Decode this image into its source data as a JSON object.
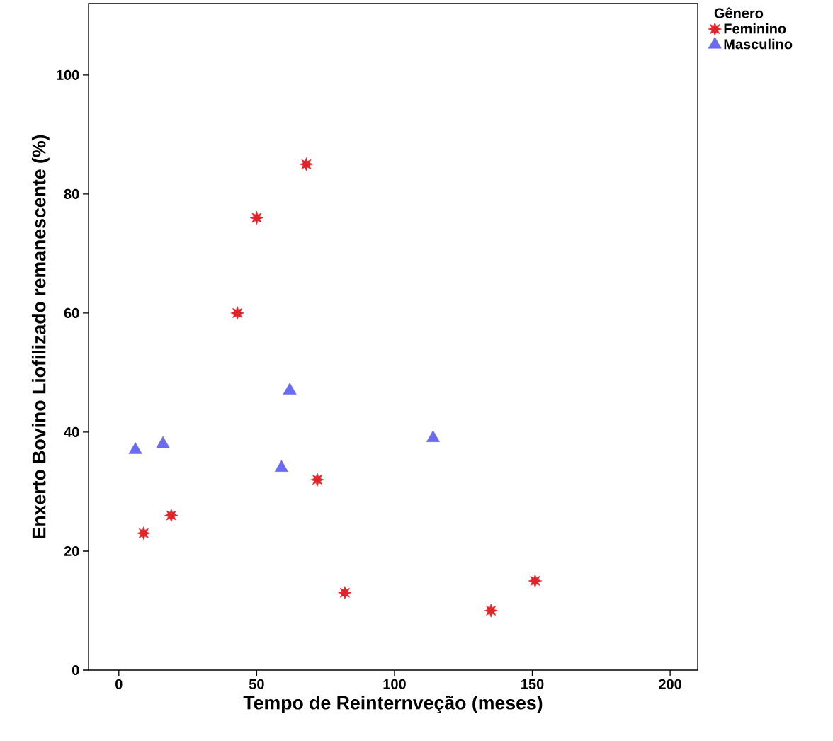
{
  "chart_data": {
    "type": "scatter",
    "xlabel": "Tempo de Reinternveção (meses)",
    "ylabel": "Enxerto Bovino Liofilizado remanescente (%)",
    "legend_title": "Gênero",
    "legend": "top right",
    "grid": false,
    "xlim": [
      -11,
      210
    ],
    "ylim": [
      0,
      112
    ],
    "xticks": [
      0,
      50,
      100,
      150,
      200
    ],
    "yticks": [
      0,
      20,
      40,
      60,
      80,
      100
    ],
    "series": [
      {
        "name": "Feminino",
        "color": "#e0242b",
        "marker": "star",
        "x": [
          68,
          50,
          43,
          72,
          19,
          9,
          82,
          135,
          151
        ],
        "values": [
          85,
          76,
          60,
          32,
          26,
          23,
          13,
          10,
          15
        ]
      },
      {
        "name": "Masculino",
        "color": "#6b6bf0",
        "marker": "triangle",
        "x": [
          6,
          16,
          62,
          59,
          114
        ],
        "values": [
          37,
          38,
          47,
          34,
          39
        ]
      }
    ]
  }
}
